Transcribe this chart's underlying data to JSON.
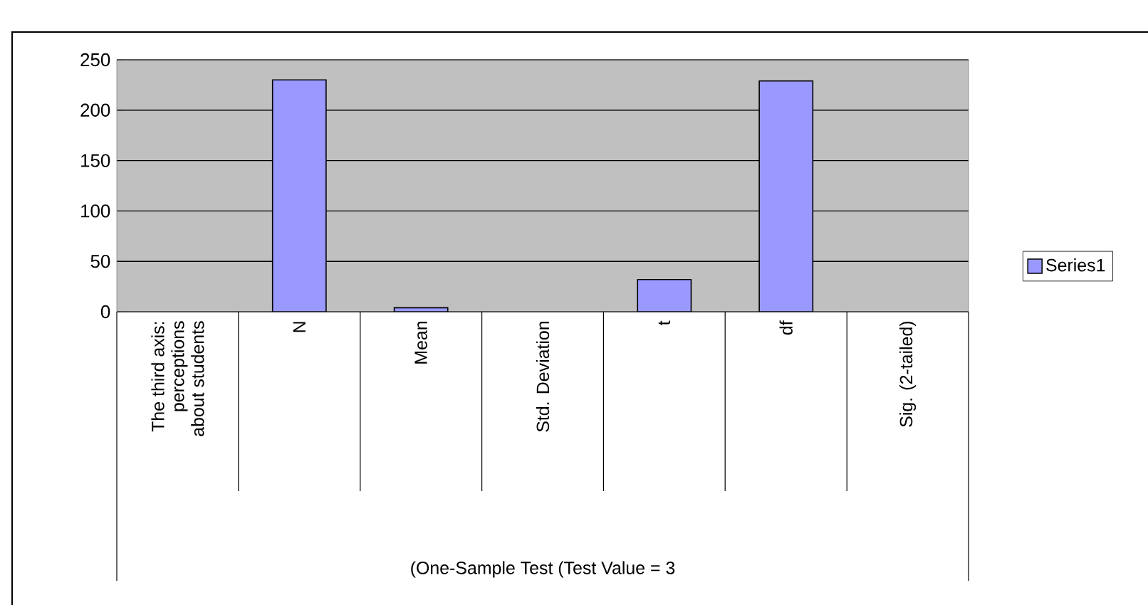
{
  "chart_data": {
    "type": "bar",
    "annotations": [
      "(One-Sample Test (Test Value = 3"
    ],
    "categories": [
      "The third axis: perceptions about students",
      "N",
      "Mean",
      "Std. Deviation",
      "t",
      "df",
      "Sig. (2-tailed)"
    ],
    "series": [
      {
        "name": "Series1",
        "color": "#9999ff",
        "values": [
          null,
          230,
          4,
          null,
          32,
          229,
          null
        ]
      }
    ],
    "ylim": [
      0,
      250
    ],
    "yticks": [
      0,
      50,
      100,
      150,
      200,
      250
    ],
    "grid": "y",
    "legend": "right"
  }
}
